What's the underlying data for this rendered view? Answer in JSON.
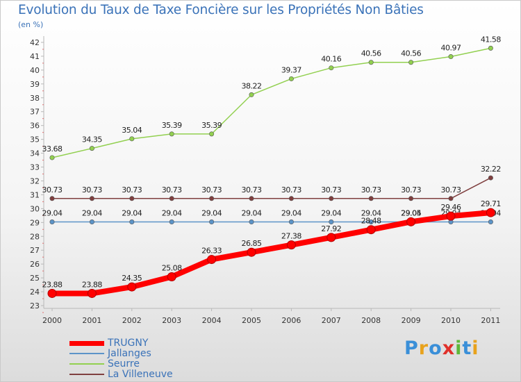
{
  "title": "Evolution du Taux de Taxe Foncière sur les Propriétés Non Bâties",
  "unit_label": "(en %)",
  "logo_text": "Proxiti",
  "chart_data": {
    "type": "line",
    "title": "Evolution du Taux de Taxe Foncière sur les Propriétés Non Bâties",
    "ylabel": "(en %)",
    "xlabel": "",
    "x": [
      "2000",
      "2001",
      "2002",
      "2003",
      "2004",
      "2005",
      "2006",
      "2007",
      "2008",
      "2009",
      "2010",
      "2011"
    ],
    "ylim": [
      23,
      42
    ],
    "yticks": [
      23,
      24,
      25,
      26,
      27,
      28,
      29,
      30,
      31,
      32,
      33,
      34,
      35,
      36,
      37,
      38,
      39,
      40,
      41,
      42
    ],
    "grid": false,
    "legend_position": "bottom-left",
    "series": [
      {
        "name": "TRUGNY",
        "color": "#ff0000",
        "values": [
          23.88,
          23.88,
          24.35,
          25.08,
          26.33,
          26.85,
          27.38,
          27.92,
          28.48,
          29.05,
          29.46,
          29.71
        ],
        "labels": [
          "23.88",
          "23.88",
          "24.35",
          "25.08",
          "26.33",
          "26.85",
          "27.38",
          "27.92",
          "28.48",
          "29.05",
          "29.46",
          "29.71"
        ]
      },
      {
        "name": "Jallanges",
        "color": "#5c94c8",
        "values": [
          29.04,
          29.04,
          29.04,
          29.04,
          29.04,
          29.04,
          29.04,
          29.04,
          29.04,
          29.04,
          29.04,
          29.04
        ],
        "labels": [
          "29.04",
          "29.04",
          "29.04",
          "29.04",
          "29.04",
          "29.04",
          "29.04",
          "29.04",
          "29.04",
          "29.04",
          "29.04",
          "29.04"
        ]
      },
      {
        "name": "Seurre",
        "color": "#92d050",
        "values": [
          33.68,
          34.35,
          35.04,
          35.39,
          35.39,
          38.22,
          39.37,
          40.16,
          40.56,
          40.56,
          40.97,
          41.58
        ],
        "labels": [
          "33.68",
          "34.35",
          "35.04",
          "35.39",
          "35.39",
          "38.22",
          "39.37",
          "40.16",
          "40.56",
          "40.56",
          "40.97",
          "41.58"
        ]
      },
      {
        "name": "La Villeneuve",
        "color": "#7f3f3f",
        "values": [
          30.73,
          30.73,
          30.73,
          30.73,
          30.73,
          30.73,
          30.73,
          30.73,
          30.73,
          30.73,
          30.73,
          32.22
        ],
        "labels": [
          "30.73",
          "30.73",
          "30.73",
          "30.73",
          "30.73",
          "30.73",
          "30.73",
          "30.73",
          "30.73",
          "30.73",
          "30.73",
          "32.22"
        ]
      }
    ]
  }
}
